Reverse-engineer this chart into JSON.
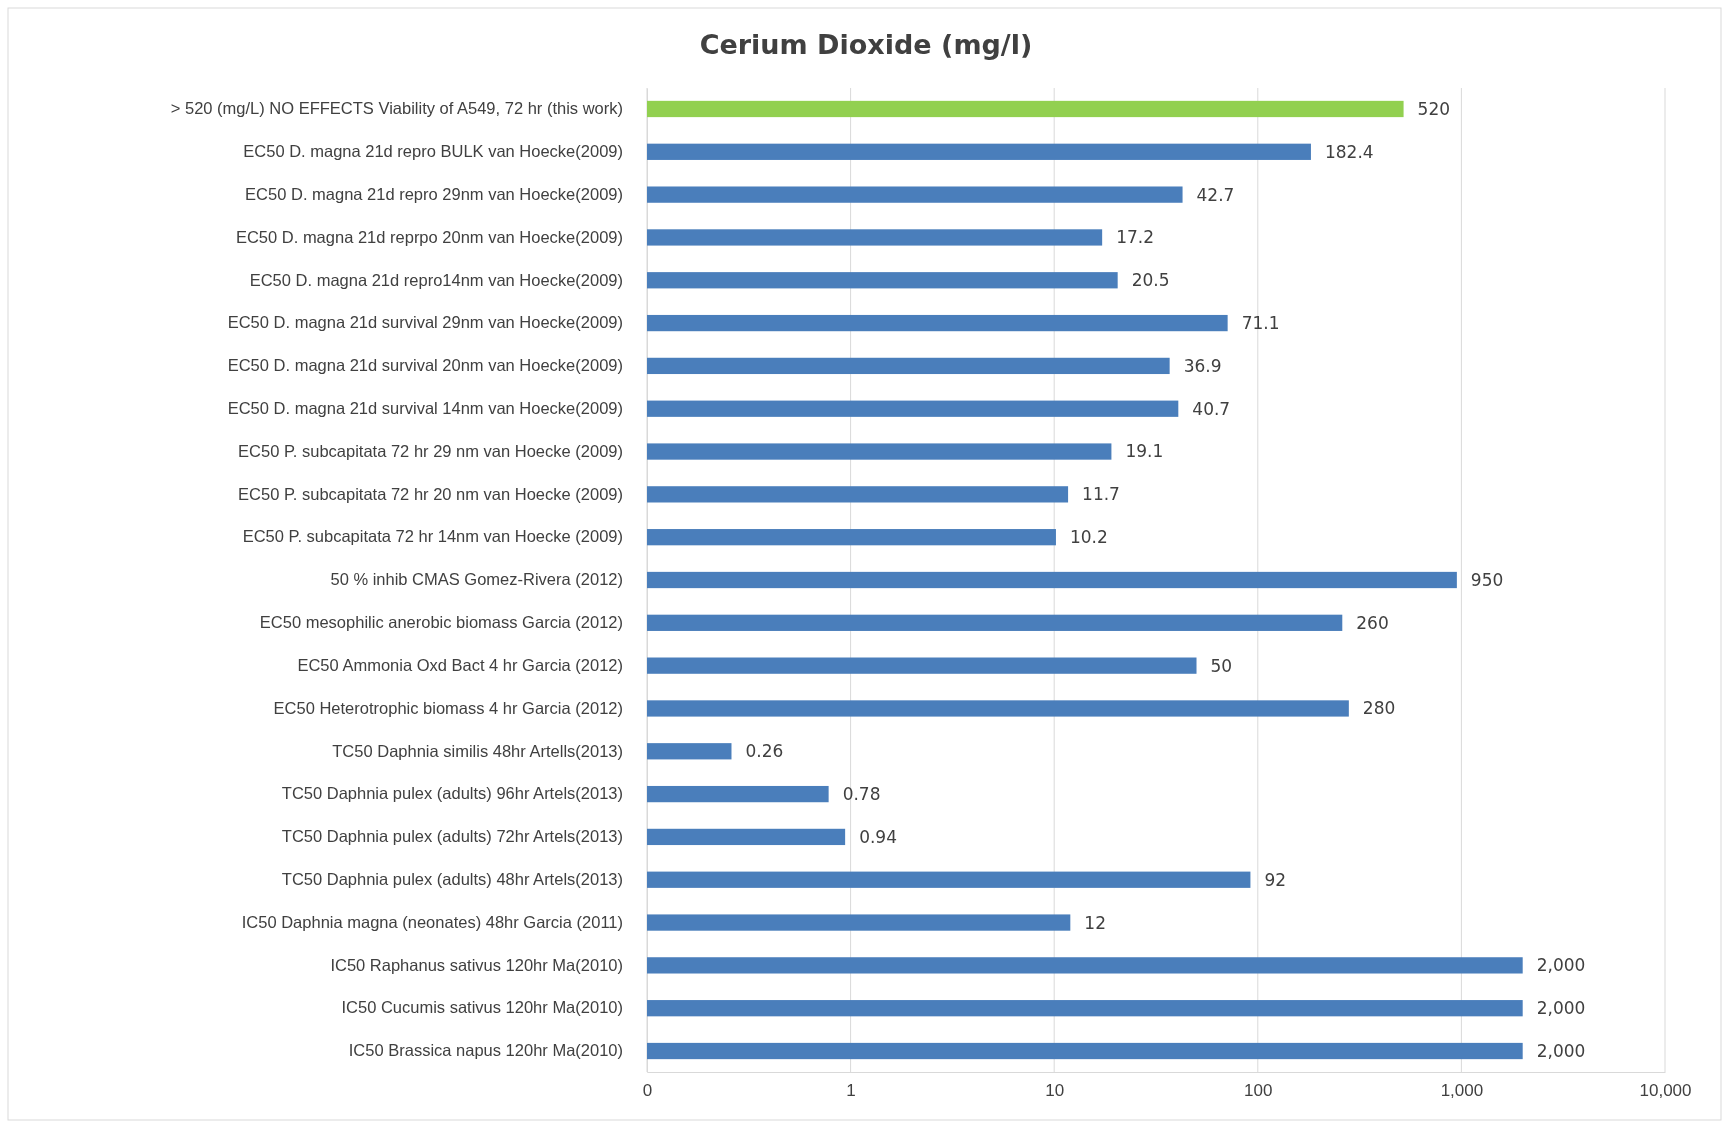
{
  "chart_data": {
    "type": "bar",
    "orientation": "horizontal",
    "title": "Cerium Dioxide (mg/l)",
    "log": "x",
    "grid": "x",
    "categories": [
      "> 520 (mg/L) NO EFFECTS Viability of A549, 72 hr (this work)",
      "EC50 D. magna 21d repro BULK van Hoecke(2009)",
      "EC50 D. magna 21d repro 29nm van Hoecke(2009)",
      "EC50 D. magna 21d reprpo 20nm van Hoecke(2009)",
      "EC50 D. magna 21d repro14nm van Hoecke(2009)",
      "EC50 D. magna 21d survival 29nm van Hoecke(2009)",
      "EC50 D. magna 21d survival 20nm van Hoecke(2009)",
      "EC50 D. magna 21d survival 14nm van Hoecke(2009)",
      "EC50 P. subcapitata 72 hr 29 nm van Hoecke (2009)",
      "EC50 P. subcapitata 72 hr 20 nm van Hoecke (2009)",
      "EC50 P. subcapitata 72 hr 14nm van Hoecke (2009)",
      "50 % inhib CMAS Gomez-Rivera (2012)",
      "EC50 mesophilic anerobic biomass Garcia (2012)",
      "EC50 Ammonia Oxd Bact 4 hr Garcia (2012)",
      "EC50 Heterotrophic biomass 4 hr Garcia (2012)",
      "TC50 Daphnia similis 48hr Artells(2013)",
      "TC50 Daphnia pulex (adults) 96hr Artels(2013)",
      "TC50 Daphnia pulex (adults) 72hr Artels(2013)",
      "TC50 Daphnia pulex (adults) 48hr  Artels(2013)",
      "IC50 Daphnia magna (neonates) 48hr Garcia (2011)",
      "IC50 Raphanus sativus 120hr Ma(2010)",
      "IC50 Cucumis sativus 120hr Ma(2010)",
      "IC50 Brassica napus 120hr Ma(2010)"
    ],
    "values": [
      520,
      182.4,
      42.7,
      17.2,
      20.5,
      71.1,
      36.9,
      40.7,
      19.1,
      11.7,
      10.2,
      950,
      260,
      50,
      280,
      0.26,
      0.78,
      0.94,
      92,
      12,
      2000,
      2000,
      2000
    ],
    "value_labels": [
      "520",
      "182.4",
      "42.7",
      "17.2",
      "20.5",
      "71.1",
      "36.9",
      "40.7",
      "19.1",
      "11.7",
      "10.2",
      "950",
      "260",
      "50",
      "280",
      "0.26",
      "0.78",
      "0.94",
      "92",
      "12",
      "2,000",
      "2,000",
      "2,000"
    ],
    "colors": [
      "#92d050",
      "#4a7ebb",
      "#4a7ebb",
      "#4a7ebb",
      "#4a7ebb",
      "#4a7ebb",
      "#4a7ebb",
      "#4a7ebb",
      "#4a7ebb",
      "#4a7ebb",
      "#4a7ebb",
      "#4a7ebb",
      "#4a7ebb",
      "#4a7ebb",
      "#4a7ebb",
      "#4a7ebb",
      "#4a7ebb",
      "#4a7ebb",
      "#4a7ebb",
      "#4a7ebb",
      "#4a7ebb",
      "#4a7ebb",
      "#4a7ebb"
    ],
    "xlim": [
      0.1,
      10000
    ],
    "xticks": [
      {
        "value": 0.1,
        "label": "0"
      },
      1,
      10,
      100,
      {
        "value": 1000,
        "label": "1,000"
      },
      {
        "value": 10000,
        "label": "10,000"
      }
    ]
  }
}
